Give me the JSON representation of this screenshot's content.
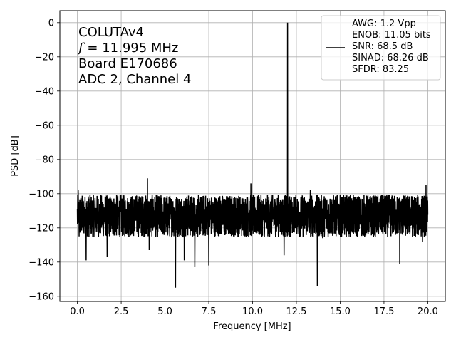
{
  "chart_data": {
    "type": "line",
    "title": "",
    "xlabel": "Frequency [MHz]",
    "ylabel": "PSD [dB]",
    "xlim": [
      -1.0,
      21.0
    ],
    "ylim": [
      -163.0,
      7.0
    ],
    "x_ticks": [
      0.0,
      2.5,
      5.0,
      7.5,
      10.0,
      12.5,
      15.0,
      17.5,
      20.0
    ],
    "x_tick_labels": [
      "0.0",
      "2.5",
      "5.0",
      "7.5",
      "10.0",
      "12.5",
      "15.0",
      "17.5",
      "20.0"
    ],
    "y_ticks": [
      0,
      -20,
      -40,
      -60,
      -80,
      -100,
      -120,
      -140,
      -160
    ],
    "y_tick_labels": [
      "0",
      "−20",
      "−40",
      "−60",
      "−80",
      "−100",
      "−120",
      "−140",
      "−160"
    ],
    "grid": true,
    "line_color": "#000000",
    "annotation_lines": [
      {
        "text": "COLUTAv4",
        "italic_prefix": ""
      },
      {
        "text": " = 11.995 MHz",
        "italic_prefix": "f"
      },
      {
        "text": "Board E170686",
        "italic_prefix": ""
      },
      {
        "text": "ADC 2, Channel 4",
        "italic_prefix": ""
      }
    ],
    "legend": {
      "placement": "top-right",
      "lines": [
        "AWG: 1.2 Vpp",
        "ENOB: 11.05 bits",
        "SNR: 68.5 dB",
        "SINAD: 68.26 dB",
        "SFDR: 83.25"
      ]
    },
    "series": [
      {
        "noise_floor_db": -113,
        "floor_range_db": [
          -125,
          -100
        ],
        "fundamental": {
          "x": 11.995,
          "y": 0
        },
        "skirt": {
          "x_range": [
            11.5,
            12.5
          ],
          "peak_db": -87
        },
        "spurs": [
          {
            "x": 0.05,
            "y": -98
          },
          {
            "x": 4.0,
            "y": -91
          },
          {
            "x": 9.9,
            "y": -94
          },
          {
            "x": 13.3,
            "y": -98
          },
          {
            "x": 19.9,
            "y": -95
          }
        ],
        "dips": [
          {
            "x": 0.1,
            "y": -125
          },
          {
            "x": 0.5,
            "y": -139
          },
          {
            "x": 1.7,
            "y": -137
          },
          {
            "x": 4.1,
            "y": -133
          },
          {
            "x": 5.6,
            "y": -155
          },
          {
            "x": 6.1,
            "y": -139
          },
          {
            "x": 6.7,
            "y": -143
          },
          {
            "x": 7.5,
            "y": -142
          },
          {
            "x": 11.8,
            "y": -136
          },
          {
            "x": 13.7,
            "y": -154
          },
          {
            "x": 14.0,
            "y": -126
          },
          {
            "x": 18.4,
            "y": -141
          },
          {
            "x": 19.7,
            "y": -128
          }
        ]
      }
    ]
  }
}
